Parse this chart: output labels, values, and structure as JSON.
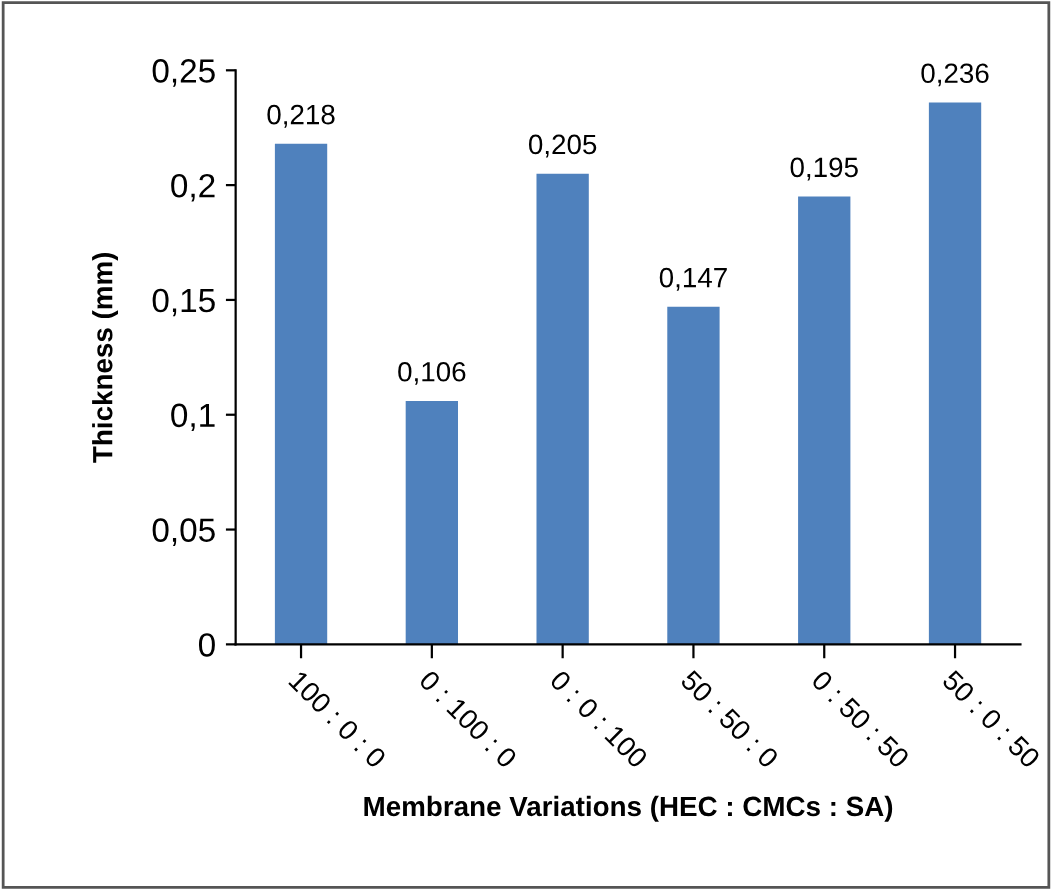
{
  "chart_data": {
    "type": "bar",
    "xlabel": "Membrane Variations (HEC : CMCs : SA)",
    "ylabel": "Thickness (mm)",
    "categories": [
      "100 : 0 : 0",
      "0 : 100 : 0",
      "0 : 0 : 100",
      "50 : 50 : 0",
      "0 : 50 : 50",
      "50 : 0 : 50"
    ],
    "values": [
      0.218,
      0.106,
      0.205,
      0.147,
      0.195,
      0.236
    ],
    "value_labels": [
      "0,218",
      "0,106",
      "0,205",
      "0,147",
      "0,195",
      "0,236"
    ],
    "color": "#4f81bd",
    "ylim": [
      0,
      0.25
    ],
    "yticks": [
      {
        "value": 0,
        "label": "0"
      },
      {
        "value": 0.05,
        "label": "0,05"
      },
      {
        "value": 0.1,
        "label": "0,1"
      },
      {
        "value": 0.15,
        "label": "0,15"
      },
      {
        "value": 0.2,
        "label": "0,2"
      },
      {
        "value": 0.25,
        "label": "0,25"
      }
    ],
    "grid": false,
    "legend": false
  }
}
